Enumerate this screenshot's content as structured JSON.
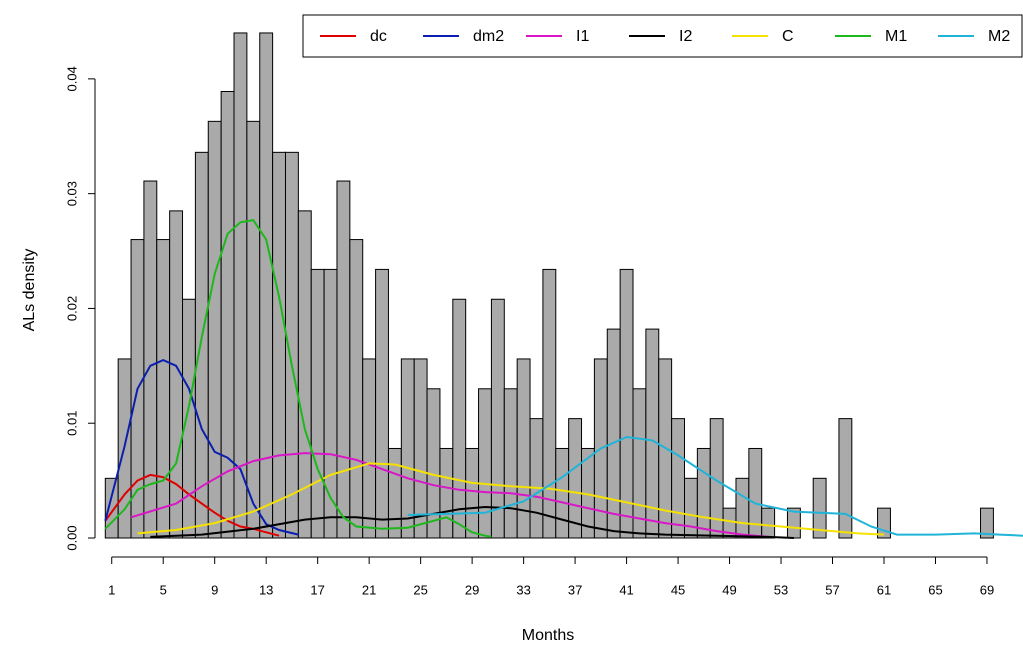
{
  "chart_data": {
    "type": "histogram",
    "xlabel": "Months",
    "ylabel": "ALs density",
    "bins": [
      0.5,
      1.5,
      2.5,
      3.5,
      4.5,
      5.5,
      6.5,
      7.5,
      8.5,
      9.5,
      10.5,
      11.5,
      12.5,
      13.5,
      14.5,
      15.5,
      16.5,
      17.5,
      18.5,
      19.5,
      20.5,
      21.5,
      22.5,
      23.5,
      24.5,
      25.5,
      26.5,
      27.5,
      28.5,
      29.5,
      30.5,
      31.5,
      32.5,
      33.5,
      34.5,
      35.5,
      36.5,
      37.5,
      38.5,
      39.5,
      40.5,
      41.5,
      42.5,
      43.5,
      44.5,
      45.5,
      46.5,
      47.5,
      48.5,
      49.5,
      50.5,
      51.5,
      52.5,
      53.5,
      54.5,
      55.5,
      56.5,
      57.5,
      58.5,
      59.5,
      60.5,
      61.5,
      62.5,
      63.5,
      64.5,
      65.5,
      66.5,
      67.5,
      68.5,
      69.5,
      70.5
    ],
    "values": [
      0.0052,
      0.0156,
      0.026,
      0.0311,
      0.026,
      0.0285,
      0.0208,
      0.0336,
      0.0363,
      0.0389,
      0.044,
      0.0363,
      0.044,
      0.0336,
      0.0336,
      0.0285,
      0.0234,
      0.0234,
      0.0311,
      0.026,
      0.0156,
      0.0234,
      0.0078,
      0.0156,
      0.0156,
      0.013,
      0.0078,
      0.0208,
      0.0078,
      0.013,
      0.0208,
      0.013,
      0.0156,
      0.0104,
      0.0234,
      0.0078,
      0.0104,
      0.0078,
      0.0156,
      0.0182,
      0.0234,
      0.013,
      0.0182,
      0.0156,
      0.0104,
      0.0052,
      0.0078,
      0.0104,
      0.0026,
      0.0052,
      0.0078,
      0.0026,
      0,
      0.0026,
      0,
      0.0052,
      0,
      0.0104,
      0,
      0,
      0.0026,
      0,
      0,
      0,
      0,
      0,
      0,
      0,
      0.0026,
      0
    ],
    "color": "#aaaaaa",
    "xlim": [
      -0.3,
      71.8
    ],
    "ylim": [
      0,
      0.046
    ],
    "xticks": [
      1,
      5,
      9,
      13,
      17,
      21,
      25,
      29,
      33,
      37,
      41,
      45,
      49,
      53,
      57,
      61,
      65,
      69
    ],
    "yticks": [
      {
        "value": 0,
        "label": "0.00"
      },
      {
        "value": 0.01,
        "label": "0.01"
      },
      {
        "value": 0.02,
        "label": "0.02"
      },
      {
        "value": 0.03,
        "label": "0.03"
      },
      {
        "value": 0.04,
        "label": "0.04"
      }
    ],
    "series": [
      {
        "name": "dc",
        "color": "#e00000",
        "x": [
          0.5,
          2,
          3,
          4,
          5,
          6,
          7,
          8,
          9,
          10,
          11,
          12,
          13,
          14
        ],
        "values": [
          0.0015,
          0.0038,
          0.005,
          0.0055,
          0.0053,
          0.0047,
          0.0038,
          0.003,
          0.0022,
          0.0015,
          0.001,
          0.0008,
          0.0005,
          0.0002
        ]
      },
      {
        "name": "dm2",
        "color": "#0a1fb0",
        "x": [
          0.5,
          2,
          3,
          4,
          5,
          6,
          7,
          8,
          9,
          10,
          11,
          12,
          13,
          14,
          15.5
        ],
        "values": [
          0.0015,
          0.008,
          0.013,
          0.015,
          0.0155,
          0.015,
          0.013,
          0.0095,
          0.0075,
          0.007,
          0.006,
          0.003,
          0.0012,
          0.0007,
          0.0003
        ]
      },
      {
        "name": "I1",
        "color": "#d916c8",
        "x": [
          2.5,
          6,
          8,
          10,
          12,
          14,
          16,
          18,
          20,
          22,
          24,
          26,
          28,
          30,
          32,
          34,
          36,
          38,
          40,
          42,
          44,
          46,
          48,
          50,
          52
        ],
        "values": [
          0.0018,
          0.003,
          0.0045,
          0.0058,
          0.0067,
          0.0072,
          0.0074,
          0.0073,
          0.0068,
          0.006,
          0.0052,
          0.0046,
          0.0042,
          0.004,
          0.0039,
          0.0036,
          0.0031,
          0.0026,
          0.0021,
          0.0017,
          0.0013,
          0.001,
          0.0006,
          0.0003,
          0.0001
        ]
      },
      {
        "name": "I2",
        "color": "#000000",
        "x": [
          4,
          8,
          12,
          16,
          18,
          20,
          22,
          24,
          26,
          28,
          30,
          32,
          34,
          36,
          38,
          40,
          42,
          44,
          48,
          52,
          54
        ],
        "values": [
          0.0001,
          0.0003,
          0.0008,
          0.0016,
          0.0018,
          0.0018,
          0.0016,
          0.0017,
          0.0021,
          0.0025,
          0.0027,
          0.0026,
          0.0022,
          0.0016,
          0.001,
          0.0006,
          0.0004,
          0.0003,
          0.0002,
          0.0001,
          0
        ]
      },
      {
        "name": "C",
        "color": "#f5e200",
        "x": [
          3,
          6,
          9,
          12,
          15,
          18,
          21,
          23,
          26,
          29,
          32,
          35,
          38,
          41,
          44,
          47,
          50,
          53,
          56,
          59,
          61
        ],
        "values": [
          0.0004,
          0.0007,
          0.0013,
          0.0023,
          0.0038,
          0.0055,
          0.0065,
          0.0064,
          0.0055,
          0.0048,
          0.0045,
          0.0043,
          0.0038,
          0.0031,
          0.0024,
          0.0018,
          0.0013,
          0.001,
          0.0007,
          0.0004,
          0.0003
        ]
      },
      {
        "name": "M1",
        "color": "#1cb81c",
        "x": [
          0.5,
          2,
          3,
          4,
          5,
          6,
          7,
          8,
          9,
          10,
          11,
          12,
          13,
          14,
          15,
          16,
          17,
          18,
          19,
          20,
          22,
          24,
          26,
          27,
          28,
          29,
          30,
          30.5
        ],
        "values": [
          0.0008,
          0.0025,
          0.0042,
          0.0047,
          0.005,
          0.0065,
          0.0115,
          0.0175,
          0.023,
          0.0265,
          0.0275,
          0.0277,
          0.026,
          0.021,
          0.015,
          0.0095,
          0.006,
          0.0035,
          0.0018,
          0.001,
          0.0008,
          0.0009,
          0.0015,
          0.0018,
          0.0012,
          0.0005,
          0.0002,
          0.0001
        ]
      },
      {
        "name": "M2",
        "color": "#1fb4d8",
        "x": [
          24,
          27,
          30,
          33,
          36,
          39,
          41,
          43,
          45,
          48,
          51,
          54,
          56,
          58,
          60,
          62,
          65,
          68,
          70,
          71.8
        ],
        "values": [
          0.002,
          0.0021,
          0.0022,
          0.0032,
          0.0053,
          0.0078,
          0.0088,
          0.0085,
          0.0072,
          0.005,
          0.003,
          0.0023,
          0.0022,
          0.0021,
          0.001,
          0.0003,
          0.0003,
          0.0004,
          0.0003,
          0.0002
        ]
      }
    ]
  }
}
